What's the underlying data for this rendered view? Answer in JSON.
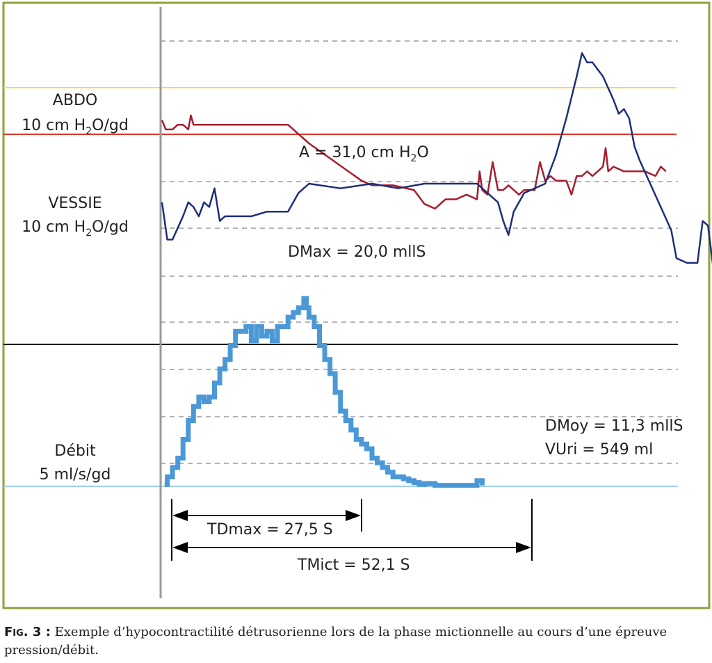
{
  "colors": {
    "frame": "#8aa33a",
    "abdo": "#a51d2d",
    "vessie": "#1d2e7a",
    "debit": "#4b98d6",
    "abdo_baseline": "#d9372a",
    "yellow_line": "#f2de4a",
    "black_line": "#000000",
    "debit_baseline": "#9fd0ec",
    "grid": "#9a9a9a",
    "axis": "#9a9a9a"
  },
  "labels": {
    "abdo_title": "ABDO",
    "abdo_scale_pre": "10 cm H",
    "abdo_scale_sub": "2",
    "abdo_scale_post": "O/gd",
    "abdo_annotation_pre": "A = 31,0 cm H",
    "abdo_annotation_sub": "2",
    "abdo_annotation_post": "O",
    "vessie_title": "VESSIE",
    "vessie_scale_pre": "10 cm H",
    "vessie_scale_sub": "2",
    "vessie_scale_post": "O/gd",
    "dmax": "DMax = 20,0 mllS",
    "debit_title": "Débit",
    "debit_scale": "5 ml/s/gd",
    "dmoy": "DMoy = 11,3 mllS",
    "vuri": "VUri = 549 ml",
    "tdmax": "TDmax = 27,5 S",
    "tmict": "TMict = 52,1 S"
  },
  "caption": {
    "label": "Fig. 3 :",
    "text": "Exemple d’hypocontractilité détrusorienne lors de la phase mictionnelle au cours d’une épreuve pression/débit."
  },
  "chart_data": {
    "type": "line",
    "title": "",
    "x_unit": "S",
    "series": [
      {
        "name": "ABDO",
        "unit": "cm H2O",
        "scale": "10 cm H2O/gd",
        "values": [
          [
            0,
            72
          ],
          [
            0.7,
            70
          ],
          [
            2,
            70
          ],
          [
            3,
            71
          ],
          [
            4,
            71
          ],
          [
            5,
            70
          ],
          [
            5.5,
            73
          ],
          [
            6,
            71
          ],
          [
            7,
            71
          ],
          [
            10,
            71
          ],
          [
            14,
            71
          ],
          [
            20,
            71
          ],
          [
            24,
            71
          ],
          [
            28,
            67
          ],
          [
            33,
            63
          ],
          [
            38,
            59
          ],
          [
            40,
            58
          ],
          [
            44,
            58
          ],
          [
            48,
            57
          ],
          [
            50,
            54
          ],
          [
            52,
            53
          ],
          [
            54,
            55
          ],
          [
            56,
            55
          ],
          [
            58,
            56
          ],
          [
            60,
            55
          ],
          [
            60.5,
            61
          ],
          [
            61,
            57
          ],
          [
            62,
            56
          ],
          [
            63,
            63
          ],
          [
            64,
            57
          ],
          [
            65,
            57
          ],
          [
            66,
            58
          ],
          [
            67,
            57
          ],
          [
            68,
            56
          ],
          [
            69,
            57
          ],
          [
            70,
            57
          ],
          [
            71,
            57
          ],
          [
            72,
            63
          ],
          [
            73,
            59
          ],
          [
            74,
            60
          ],
          [
            75,
            59
          ],
          [
            76,
            59
          ],
          [
            77,
            59
          ],
          [
            78,
            56
          ],
          [
            79,
            60
          ],
          [
            80,
            60
          ],
          [
            81,
            61
          ],
          [
            82,
            60
          ],
          [
            83,
            61
          ],
          [
            84,
            62
          ],
          [
            84.5,
            66
          ],
          [
            85,
            61
          ],
          [
            86,
            62
          ],
          [
            88,
            61
          ],
          [
            90,
            61
          ],
          [
            92,
            61
          ],
          [
            94,
            60
          ],
          [
            95,
            62
          ],
          [
            96,
            61
          ]
        ]
      },
      {
        "name": "VESSIE",
        "unit": "cm H2O",
        "scale": "10 cm H2O/gd",
        "values": [
          [
            0,
            76
          ],
          [
            1,
            68
          ],
          [
            2,
            68
          ],
          [
            4,
            73
          ],
          [
            5,
            76
          ],
          [
            6,
            75
          ],
          [
            7,
            73
          ],
          [
            8,
            76
          ],
          [
            9,
            75
          ],
          [
            10,
            79
          ],
          [
            11,
            72
          ],
          [
            12,
            73
          ],
          [
            14,
            73
          ],
          [
            17,
            73
          ],
          [
            20,
            74
          ],
          [
            24,
            74
          ],
          [
            26,
            78
          ],
          [
            28,
            80
          ],
          [
            34,
            79
          ],
          [
            40,
            80
          ],
          [
            45,
            79
          ],
          [
            50,
            80
          ],
          [
            55,
            80
          ],
          [
            60,
            80
          ],
          [
            62,
            78
          ],
          [
            64,
            76
          ],
          [
            65,
            72
          ],
          [
            66,
            69
          ],
          [
            67,
            74
          ],
          [
            69,
            78
          ],
          [
            71,
            79
          ],
          [
            73,
            80
          ],
          [
            75,
            86
          ],
          [
            77,
            94
          ],
          [
            79,
            103
          ],
          [
            80,
            108
          ],
          [
            81,
            106
          ],
          [
            82,
            106
          ],
          [
            84,
            103
          ],
          [
            86,
            98
          ],
          [
            87,
            95
          ],
          [
            88,
            96
          ],
          [
            89,
            94
          ],
          [
            90,
            88
          ],
          [
            91,
            85
          ],
          [
            93,
            80
          ],
          [
            95,
            75
          ],
          [
            97,
            70
          ],
          [
            98,
            64
          ],
          [
            100,
            63
          ],
          [
            102,
            63
          ],
          [
            103,
            72
          ],
          [
            104,
            71
          ],
          [
            105,
            62
          ],
          [
            106,
            60
          ],
          [
            108,
            59
          ],
          [
            110,
            57
          ],
          [
            112,
            55
          ],
          [
            114,
            54
          ],
          [
            115,
            54
          ],
          [
            116,
            53
          ]
        ]
      },
      {
        "name": "Débit",
        "unit": "ml/s",
        "scale": "5 ml/s/gd",
        "values": [
          [
            0.5,
            0.2
          ],
          [
            1,
            1
          ],
          [
            2,
            2
          ],
          [
            3,
            3
          ],
          [
            4,
            5
          ],
          [
            5,
            7
          ],
          [
            6,
            8.5
          ],
          [
            7,
            9.5
          ],
          [
            8,
            9
          ],
          [
            9,
            9.5
          ],
          [
            10,
            11
          ],
          [
            11,
            12.5
          ],
          [
            12,
            13.5
          ],
          [
            13,
            15
          ],
          [
            14,
            16.5
          ],
          [
            15,
            16.5
          ],
          [
            16,
            17
          ],
          [
            17,
            15.5
          ],
          [
            18,
            17
          ],
          [
            19,
            16
          ],
          [
            20,
            16.5
          ],
          [
            21,
            15.5
          ],
          [
            22,
            17
          ],
          [
            23,
            17
          ],
          [
            24,
            18
          ],
          [
            25,
            18.5
          ],
          [
            26,
            19
          ],
          [
            27,
            20
          ],
          [
            27.5,
            19
          ],
          [
            28,
            18
          ],
          [
            29,
            17
          ],
          [
            30,
            15
          ],
          [
            31,
            13.5
          ],
          [
            32,
            12
          ],
          [
            33,
            10
          ],
          [
            34,
            8
          ],
          [
            35,
            7
          ],
          [
            36,
            6
          ],
          [
            37,
            5
          ],
          [
            38,
            4.5
          ],
          [
            39,
            4
          ],
          [
            40,
            3
          ],
          [
            41,
            2.5
          ],
          [
            42,
            2
          ],
          [
            43,
            1.5
          ],
          [
            44,
            1
          ],
          [
            45,
            1
          ],
          [
            46,
            0.8
          ],
          [
            47,
            0.6
          ],
          [
            48,
            0.4
          ],
          [
            49,
            0.2
          ],
          [
            50,
            0.3
          ],
          [
            52,
            0.1
          ],
          [
            60,
            0.6
          ],
          [
            61,
            0.1
          ]
        ]
      }
    ],
    "annotations": {
      "A": "31,0 cm H2O",
      "DMax": "20,0 mllS",
      "DMoy": "11,3 mllS",
      "VUri": "549 ml",
      "TDmax": "27,5 S",
      "TMict": "52,1 S"
    }
  }
}
